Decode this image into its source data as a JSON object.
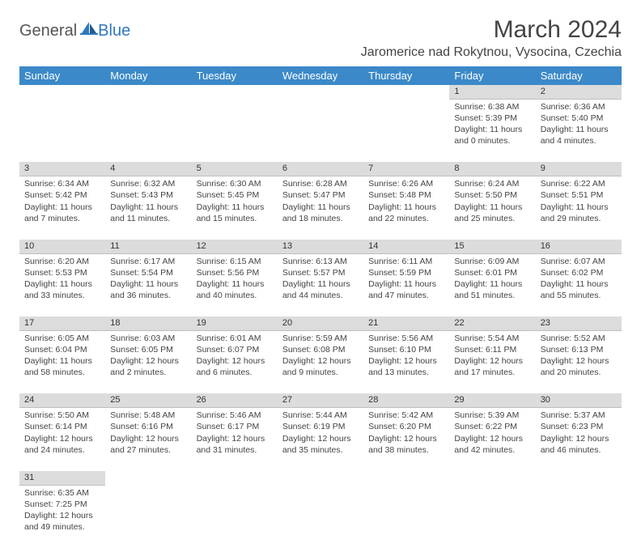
{
  "logo": {
    "part1": "General",
    "part2": "Blue"
  },
  "title": "March 2024",
  "location": "Jaromerice nad Rokytnou, Vysocina, Czechia",
  "colors": {
    "header_bg": "#3b89c9",
    "header_fg": "#ffffff",
    "daynum_bg": "#dcdcdc",
    "text": "#444444",
    "logo_gray": "#555555",
    "logo_blue": "#2f78bd"
  },
  "weekdays": [
    "Sunday",
    "Monday",
    "Tuesday",
    "Wednesday",
    "Thursday",
    "Friday",
    "Saturday"
  ],
  "weeks": [
    [
      null,
      null,
      null,
      null,
      null,
      {
        "n": "1",
        "sr": "6:38 AM",
        "ss": "5:39 PM",
        "dl": "11 hours and 0 minutes."
      },
      {
        "n": "2",
        "sr": "6:36 AM",
        "ss": "5:40 PM",
        "dl": "11 hours and 4 minutes."
      }
    ],
    [
      {
        "n": "3",
        "sr": "6:34 AM",
        "ss": "5:42 PM",
        "dl": "11 hours and 7 minutes."
      },
      {
        "n": "4",
        "sr": "6:32 AM",
        "ss": "5:43 PM",
        "dl": "11 hours and 11 minutes."
      },
      {
        "n": "5",
        "sr": "6:30 AM",
        "ss": "5:45 PM",
        "dl": "11 hours and 15 minutes."
      },
      {
        "n": "6",
        "sr": "6:28 AM",
        "ss": "5:47 PM",
        "dl": "11 hours and 18 minutes."
      },
      {
        "n": "7",
        "sr": "6:26 AM",
        "ss": "5:48 PM",
        "dl": "11 hours and 22 minutes."
      },
      {
        "n": "8",
        "sr": "6:24 AM",
        "ss": "5:50 PM",
        "dl": "11 hours and 25 minutes."
      },
      {
        "n": "9",
        "sr": "6:22 AM",
        "ss": "5:51 PM",
        "dl": "11 hours and 29 minutes."
      }
    ],
    [
      {
        "n": "10",
        "sr": "6:20 AM",
        "ss": "5:53 PM",
        "dl": "11 hours and 33 minutes."
      },
      {
        "n": "11",
        "sr": "6:17 AM",
        "ss": "5:54 PM",
        "dl": "11 hours and 36 minutes."
      },
      {
        "n": "12",
        "sr": "6:15 AM",
        "ss": "5:56 PM",
        "dl": "11 hours and 40 minutes."
      },
      {
        "n": "13",
        "sr": "6:13 AM",
        "ss": "5:57 PM",
        "dl": "11 hours and 44 minutes."
      },
      {
        "n": "14",
        "sr": "6:11 AM",
        "ss": "5:59 PM",
        "dl": "11 hours and 47 minutes."
      },
      {
        "n": "15",
        "sr": "6:09 AM",
        "ss": "6:01 PM",
        "dl": "11 hours and 51 minutes."
      },
      {
        "n": "16",
        "sr": "6:07 AM",
        "ss": "6:02 PM",
        "dl": "11 hours and 55 minutes."
      }
    ],
    [
      {
        "n": "17",
        "sr": "6:05 AM",
        "ss": "6:04 PM",
        "dl": "11 hours and 58 minutes."
      },
      {
        "n": "18",
        "sr": "6:03 AM",
        "ss": "6:05 PM",
        "dl": "12 hours and 2 minutes."
      },
      {
        "n": "19",
        "sr": "6:01 AM",
        "ss": "6:07 PM",
        "dl": "12 hours and 6 minutes."
      },
      {
        "n": "20",
        "sr": "5:59 AM",
        "ss": "6:08 PM",
        "dl": "12 hours and 9 minutes."
      },
      {
        "n": "21",
        "sr": "5:56 AM",
        "ss": "6:10 PM",
        "dl": "12 hours and 13 minutes."
      },
      {
        "n": "22",
        "sr": "5:54 AM",
        "ss": "6:11 PM",
        "dl": "12 hours and 17 minutes."
      },
      {
        "n": "23",
        "sr": "5:52 AM",
        "ss": "6:13 PM",
        "dl": "12 hours and 20 minutes."
      }
    ],
    [
      {
        "n": "24",
        "sr": "5:50 AM",
        "ss": "6:14 PM",
        "dl": "12 hours and 24 minutes."
      },
      {
        "n": "25",
        "sr": "5:48 AM",
        "ss": "6:16 PM",
        "dl": "12 hours and 27 minutes."
      },
      {
        "n": "26",
        "sr": "5:46 AM",
        "ss": "6:17 PM",
        "dl": "12 hours and 31 minutes."
      },
      {
        "n": "27",
        "sr": "5:44 AM",
        "ss": "6:19 PM",
        "dl": "12 hours and 35 minutes."
      },
      {
        "n": "28",
        "sr": "5:42 AM",
        "ss": "6:20 PM",
        "dl": "12 hours and 38 minutes."
      },
      {
        "n": "29",
        "sr": "5:39 AM",
        "ss": "6:22 PM",
        "dl": "12 hours and 42 minutes."
      },
      {
        "n": "30",
        "sr": "5:37 AM",
        "ss": "6:23 PM",
        "dl": "12 hours and 46 minutes."
      }
    ],
    [
      {
        "n": "31",
        "sr": "6:35 AM",
        "ss": "7:25 PM",
        "dl": "12 hours and 49 minutes."
      },
      null,
      null,
      null,
      null,
      null,
      null
    ]
  ],
  "labels": {
    "sunrise": "Sunrise: ",
    "sunset": "Sunset: ",
    "daylight": "Daylight: "
  }
}
